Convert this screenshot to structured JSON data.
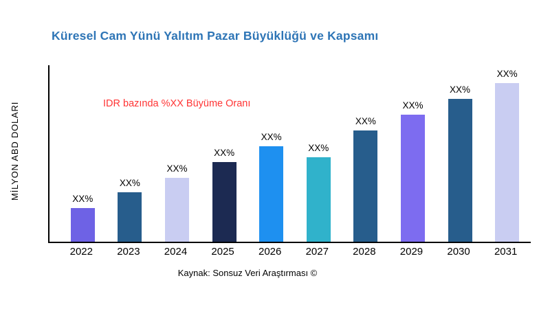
{
  "chart_data": {
    "type": "bar",
    "title": "Küresel Cam Yünü Yalıtım Pazar Büyüklüğü ve Kapsamı",
    "title_color": "#2e75b6",
    "ylabel": "MİLYON ABD DOLARI",
    "xlabel": "",
    "categories": [
      "2022",
      "2023",
      "2024",
      "2025",
      "2026",
      "2027",
      "2028",
      "2029",
      "2030",
      "2031"
    ],
    "values_relative": [
      21,
      31,
      40,
      50,
      60,
      53,
      70,
      80,
      90,
      100
    ],
    "bar_labels": [
      "XX%",
      "XX%",
      "XX%",
      "XX%",
      "XX%",
      "XX%",
      "XX%",
      "XX%",
      "XX%",
      "XX%"
    ],
    "bar_colors": [
      "#6e62e5",
      "#275d8c",
      "#c9cdf2",
      "#1c2a52",
      "#1e90f0",
      "#30b2cb",
      "#275d8c",
      "#7d6cf0",
      "#275d8c",
      "#c9cdf2"
    ],
    "annotation": "IDR bazında %XX Büyüme Oranı",
    "annotation_color": "#ff3333",
    "ylim": [
      0,
      100
    ],
    "grid": false,
    "legend": false,
    "source": "Kaynak: Sonsuz Veri Araştırması ©"
  }
}
